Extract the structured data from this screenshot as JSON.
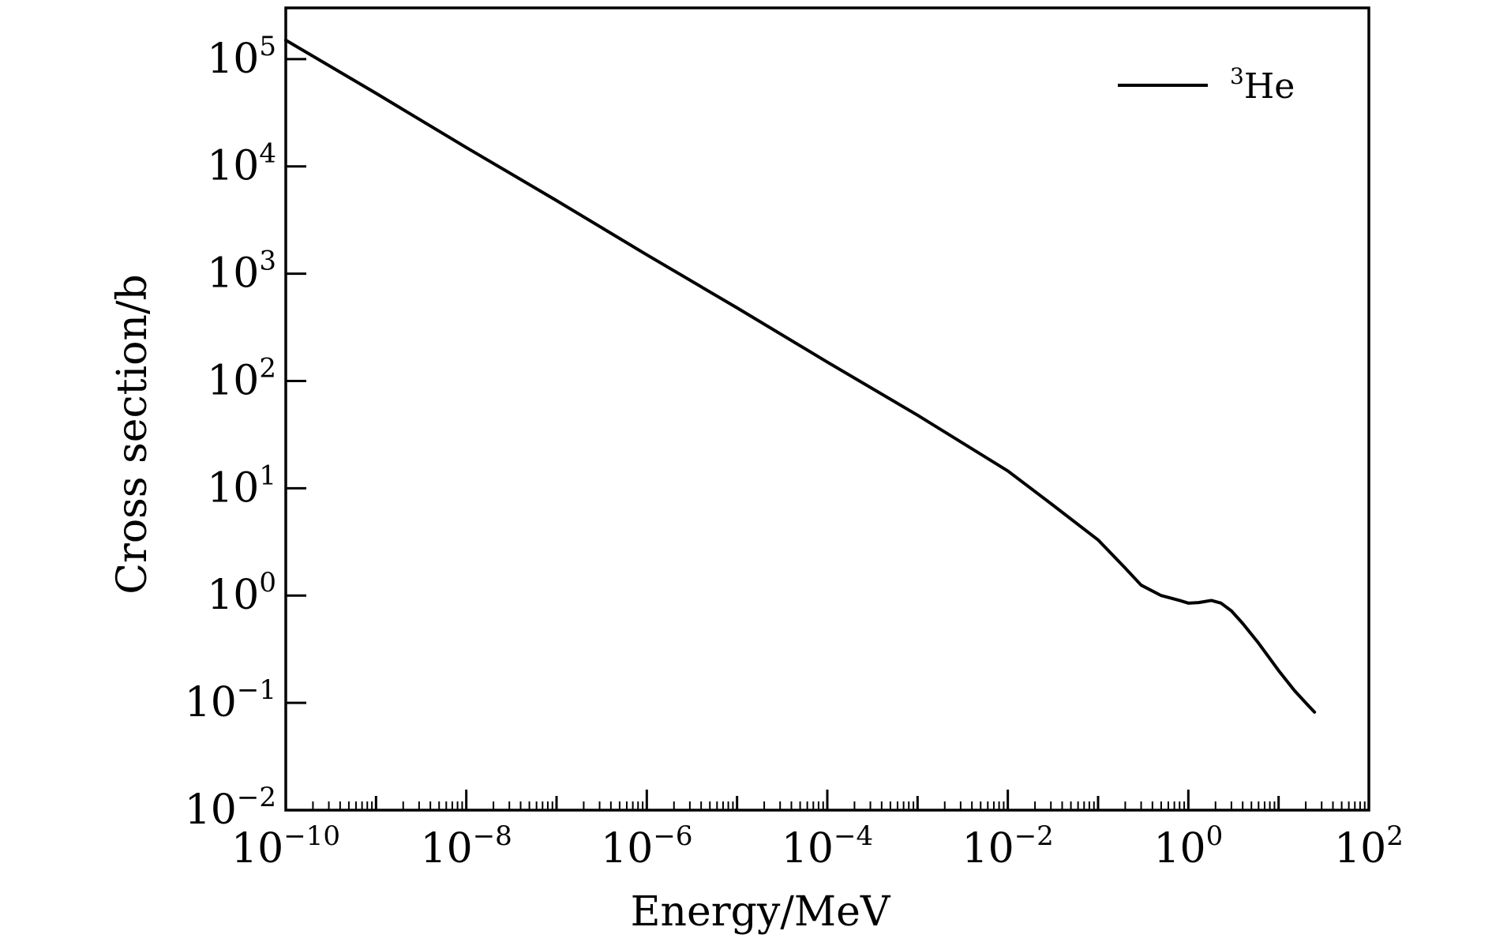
{
  "chart_data": {
    "type": "line",
    "xlabel": "Energy/MeV",
    "ylabel": "Cross section/b",
    "x_scale": "log",
    "y_scale": "log",
    "xlim": [
      1e-10,
      100
    ],
    "ylim": [
      0.01,
      300000
    ],
    "x_ticks": [
      {
        "base": "10",
        "exp": "−10"
      },
      {
        "base": "10",
        "exp": "−8"
      },
      {
        "base": "10",
        "exp": "−6"
      },
      {
        "base": "10",
        "exp": "−4"
      },
      {
        "base": "10",
        "exp": "−2"
      },
      {
        "base": "10",
        "exp": "0"
      },
      {
        "base": "10",
        "exp": "2"
      }
    ],
    "y_ticks": [
      {
        "base": "10",
        "exp": "−2"
      },
      {
        "base": "10",
        "exp": "−1"
      },
      {
        "base": "10",
        "exp": "0"
      },
      {
        "base": "10",
        "exp": "1"
      },
      {
        "base": "10",
        "exp": "2"
      },
      {
        "base": "10",
        "exp": "3"
      },
      {
        "base": "10",
        "exp": "4"
      },
      {
        "base": "10",
        "exp": "5"
      }
    ],
    "legend": {
      "position": "top-right",
      "sup": "3",
      "label": "He"
    },
    "grid": false,
    "series": [
      {
        "name": "³He",
        "color": "#000000",
        "x": [
          1e-10,
          1e-09,
          1e-08,
          1e-07,
          1e-06,
          1e-05,
          0.0001,
          0.001,
          0.01,
          0.03,
          0.1,
          0.2,
          0.3,
          0.5,
          0.8,
          1.0,
          1.3,
          1.8,
          2.3,
          3,
          4,
          6,
          10,
          15,
          20,
          25
        ],
        "y": [
          150000,
          48000,
          15000,
          4800,
          1500,
          480,
          150,
          48,
          14.5,
          7.2,
          3.3,
          1.8,
          1.25,
          1.0,
          0.9,
          0.85,
          0.86,
          0.9,
          0.85,
          0.72,
          0.55,
          0.36,
          0.2,
          0.13,
          0.1,
          0.082
        ]
      }
    ]
  }
}
